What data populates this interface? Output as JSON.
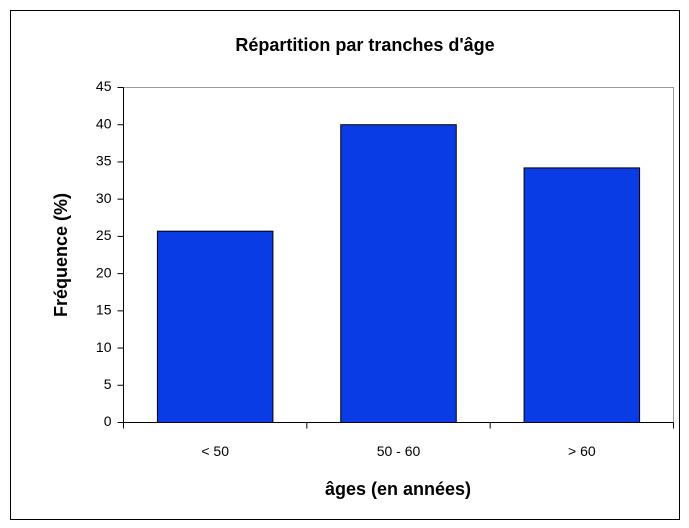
{
  "chart_data": {
    "type": "bar",
    "title": "Répartition par tranches d'âge",
    "xlabel": "âges (en années)",
    "ylabel": "Fréquence (%)",
    "categories": [
      "< 50",
      "50 - 60",
      "> 60"
    ],
    "values": [
      25.7,
      40,
      34.2
    ],
    "color": "#0a3ce6",
    "ylim": [
      0,
      45
    ],
    "yticks": [
      0,
      5,
      10,
      15,
      20,
      25,
      30,
      35,
      40,
      45
    ],
    "grid": false
  }
}
